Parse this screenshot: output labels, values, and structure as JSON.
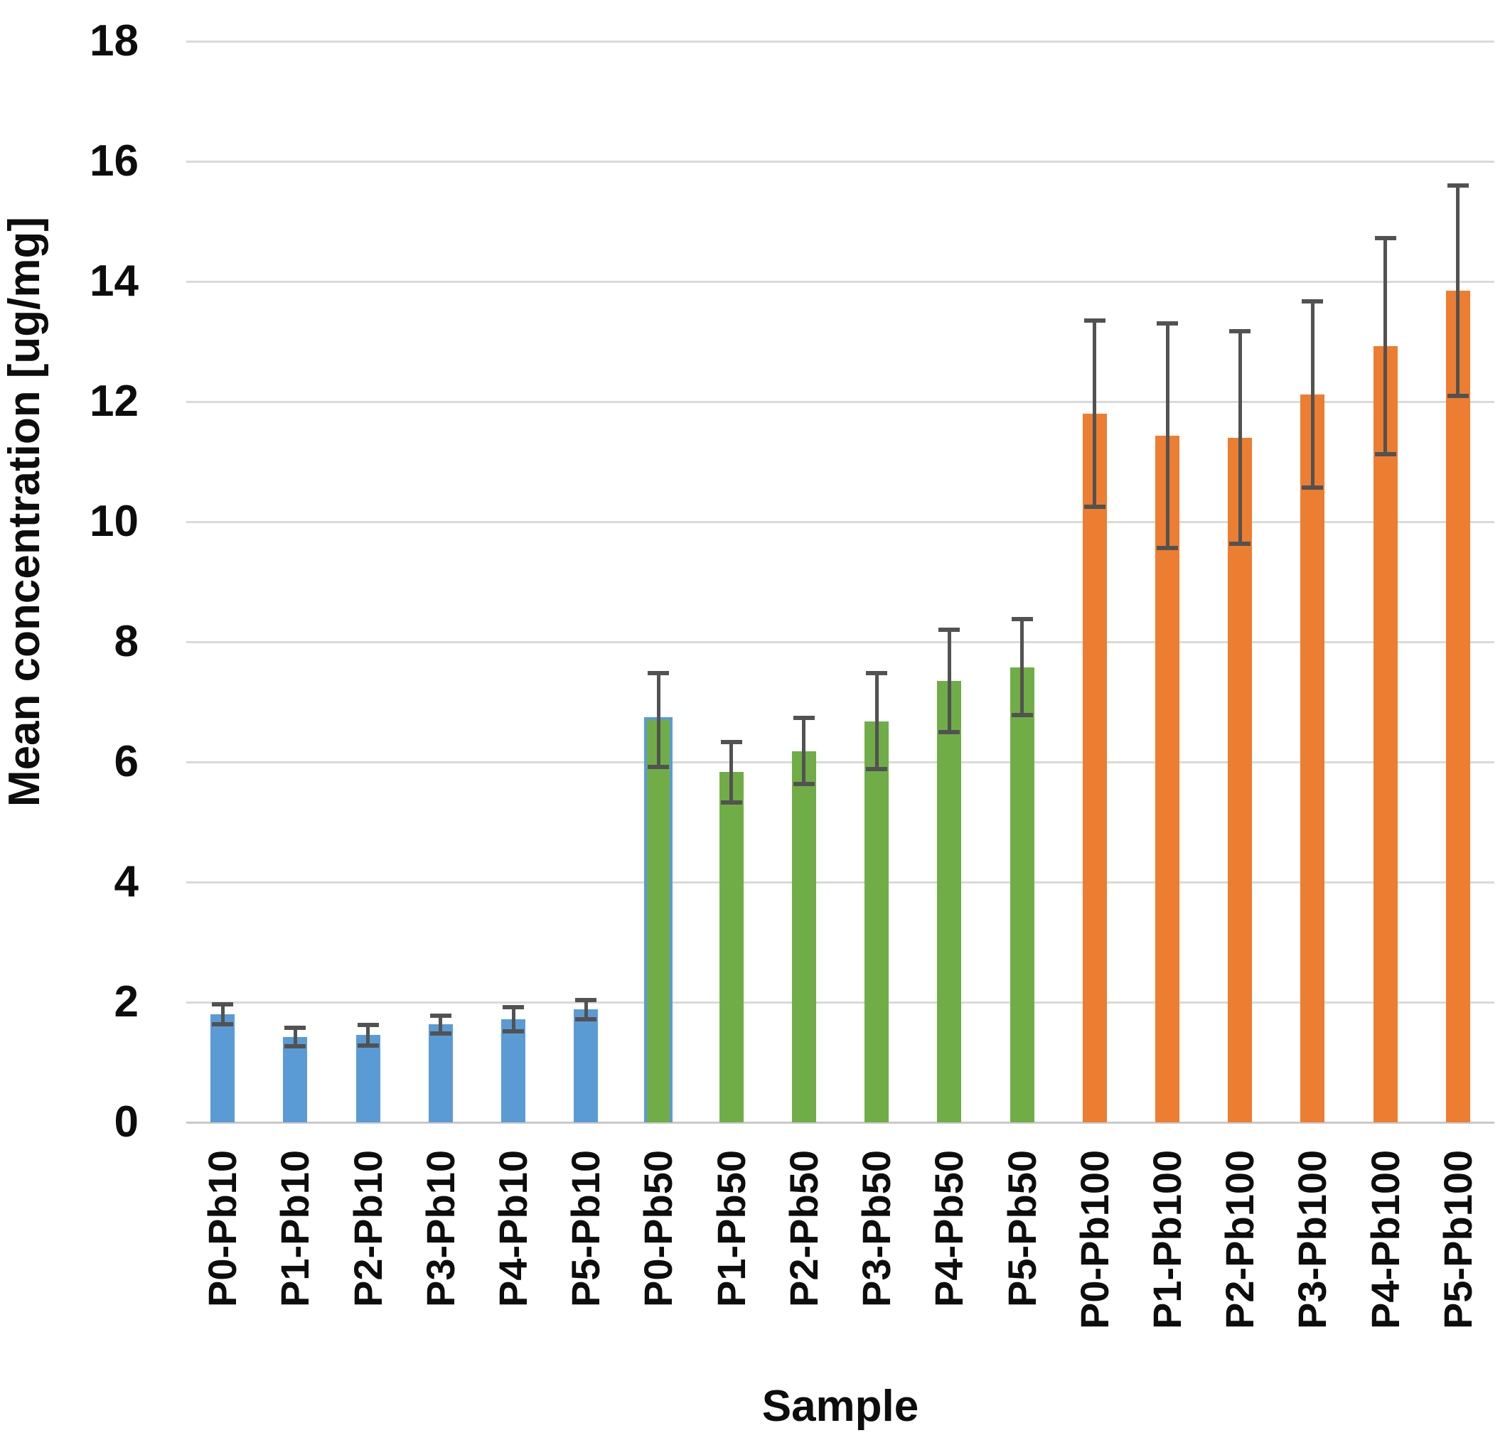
{
  "chart_data": {
    "type": "bar",
    "title": "",
    "xlabel": "Sample",
    "ylabel": "Mean concentration [ug/mg]",
    "ylim": [
      0,
      18
    ],
    "yticks": [
      0,
      2,
      4,
      6,
      8,
      10,
      12,
      14,
      16,
      18
    ],
    "grid": "horizontal",
    "legend": "none",
    "categories": [
      "P0-Pb10",
      "P1-Pb10",
      "P2-Pb10",
      "P3-Pb10",
      "P4-Pb10",
      "P5-Pb10",
      "P0-Pb50",
      "P1-Pb50",
      "P2-Pb50",
      "P3-Pb50",
      "P4-Pb50",
      "P5-Pb50",
      "P0-Pb100",
      "P1-Pb100",
      "P2-Pb100",
      "P3-Pb100",
      "P4-Pb100",
      "P5-Pb100"
    ],
    "values": [
      1.8,
      1.42,
      1.45,
      1.63,
      1.72,
      1.88,
      6.7,
      5.83,
      6.18,
      6.68,
      7.35,
      7.58,
      11.8,
      11.43,
      11.4,
      12.12,
      12.92,
      13.85
    ],
    "errors": [
      0.17,
      0.15,
      0.17,
      0.15,
      0.2,
      0.16,
      0.78,
      0.5,
      0.55,
      0.8,
      0.85,
      0.8,
      1.55,
      1.87,
      1.77,
      1.55,
      1.8,
      1.75
    ],
    "groups": [
      {
        "name": "Pb10",
        "color": "#5B9BD5"
      },
      {
        "name": "Pb50",
        "color": "#70AD47"
      },
      {
        "name": "Pb100",
        "color": "#ED7D31"
      }
    ],
    "bar_group_index": [
      0,
      0,
      0,
      0,
      0,
      0,
      1,
      1,
      1,
      1,
      1,
      1,
      2,
      2,
      2,
      2,
      2,
      2
    ],
    "highlight_outline": {
      "index": 6,
      "color": "#5B9BD5"
    },
    "error_bar_color": "#525252",
    "gridline_color": "#dadada",
    "axis_line_color": "#c9c9c9",
    "text_color": "#0d0d0d"
  }
}
